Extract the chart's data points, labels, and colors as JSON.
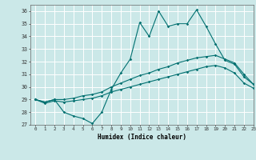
{
  "xlabel": "Humidex (Indice chaleur)",
  "xlim": [
    -0.5,
    23
  ],
  "ylim": [
    27,
    36.5
  ],
  "yticks": [
    27,
    28,
    29,
    30,
    31,
    32,
    33,
    34,
    35,
    36
  ],
  "xticks": [
    0,
    1,
    2,
    3,
    4,
    5,
    6,
    7,
    8,
    9,
    10,
    11,
    12,
    13,
    14,
    15,
    16,
    17,
    18,
    19,
    20,
    21,
    22,
    23
  ],
  "bg_color": "#cbe8e8",
  "grid_color": "#ffffff",
  "line_color": "#007070",
  "line1_x": [
    0,
    1,
    2,
    3,
    4,
    5,
    6,
    7,
    8,
    9,
    10,
    11,
    12,
    13,
    14,
    15,
    16,
    17,
    18,
    19,
    20,
    21,
    22,
    23
  ],
  "line1_y": [
    29.0,
    28.8,
    29.0,
    28.0,
    27.7,
    27.5,
    27.1,
    28.0,
    29.8,
    31.1,
    32.2,
    35.1,
    34.0,
    36.0,
    34.8,
    35.0,
    35.0,
    36.1,
    34.8,
    33.4,
    32.1,
    31.8,
    30.8,
    30.2
  ],
  "line2_x": [
    0,
    1,
    2,
    3,
    4,
    5,
    6,
    7,
    8,
    9,
    10,
    11,
    12,
    13,
    14,
    15,
    16,
    17,
    18,
    19,
    20,
    21,
    22,
    23
  ],
  "line2_y": [
    29.0,
    28.8,
    29.0,
    29.0,
    29.1,
    29.3,
    29.4,
    29.6,
    30.0,
    30.3,
    30.6,
    30.9,
    31.1,
    31.4,
    31.6,
    31.9,
    32.1,
    32.3,
    32.4,
    32.5,
    32.2,
    31.9,
    31.0,
    30.2
  ],
  "line3_x": [
    0,
    1,
    2,
    3,
    4,
    5,
    6,
    7,
    8,
    9,
    10,
    11,
    12,
    13,
    14,
    15,
    16,
    17,
    18,
    19,
    20,
    21,
    22,
    23
  ],
  "line3_y": [
    29.0,
    28.7,
    28.9,
    28.8,
    28.9,
    29.0,
    29.1,
    29.3,
    29.6,
    29.8,
    30.0,
    30.2,
    30.4,
    30.6,
    30.8,
    31.0,
    31.2,
    31.4,
    31.6,
    31.7,
    31.5,
    31.1,
    30.3,
    29.9
  ]
}
